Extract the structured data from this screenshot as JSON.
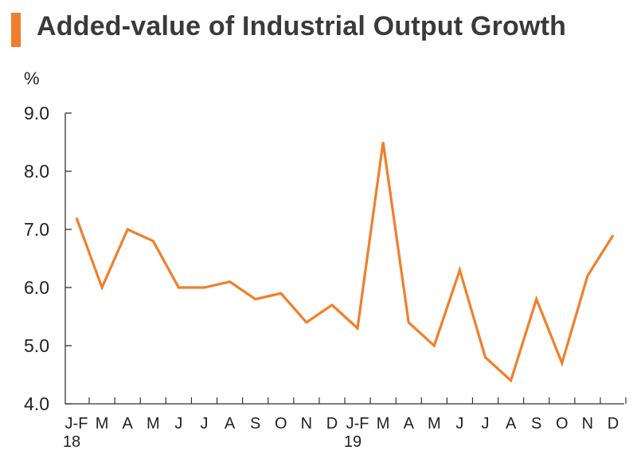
{
  "title": "Added-value of Industrial Output Growth",
  "accent_color": "#f07f2b",
  "unit_label": "%",
  "chart_data": {
    "type": "line",
    "title": "Added-value of Industrial Output Growth",
    "ylabel": "%",
    "xlabel": "",
    "ylim": [
      4.0,
      9.0
    ],
    "yticks": [
      "4.0",
      "5.0",
      "6.0",
      "7.0",
      "8.0",
      "9.0"
    ],
    "categories": [
      "J-F 18",
      "M",
      "A",
      "M",
      "J",
      "J",
      "A",
      "S",
      "O",
      "N",
      "D",
      "J-F 19",
      "M",
      "A",
      "M",
      "J",
      "J",
      "A",
      "S",
      "O",
      "N",
      "D"
    ],
    "category_labels": [
      "J-F",
      "M",
      "A",
      "M",
      "J",
      "J",
      "A",
      "S",
      "O",
      "N",
      "D",
      "J-F",
      "M",
      "A",
      "M",
      "J",
      "J",
      "A",
      "S",
      "O",
      "N",
      "D"
    ],
    "year_labels": [
      {
        "index": 0,
        "text": "18"
      },
      {
        "index": 11,
        "text": "19"
      }
    ],
    "series": [
      {
        "values": [
          7.2,
          6.0,
          7.0,
          6.8,
          6.0,
          6.0,
          6.1,
          5.8,
          5.9,
          5.4,
          5.7,
          5.3,
          8.5,
          5.4,
          5.0,
          6.3,
          4.8,
          4.4,
          5.8,
          4.7,
          6.2,
          6.9
        ],
        "color": "#f07f2b"
      }
    ],
    "grid": false
  }
}
